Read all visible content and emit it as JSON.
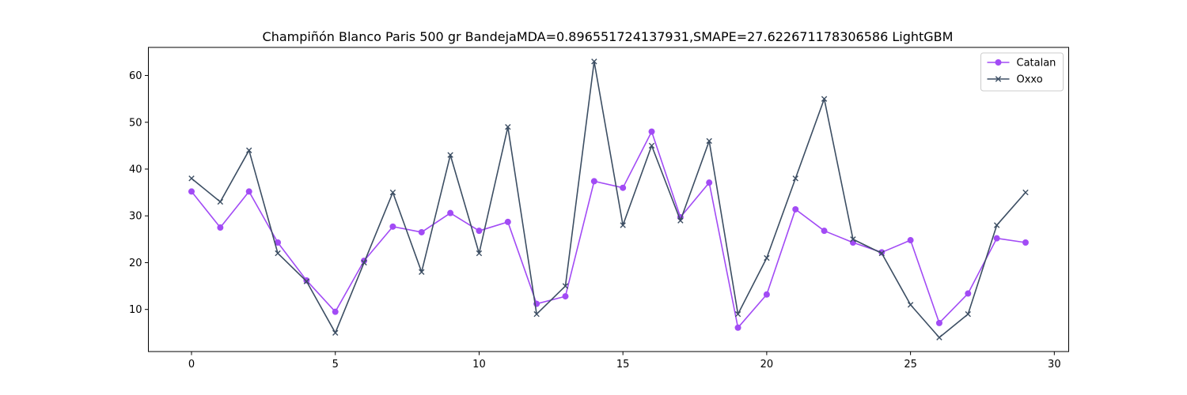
{
  "chart_data": {
    "type": "line",
    "title": "Champiñón Blanco Paris 500 gr BandejaMDA=0.896551724137931,SMAPE=27.622671178306586 LightGBM",
    "xlabel": "",
    "ylabel": "",
    "xlim": [
      -1.5,
      30.5
    ],
    "ylim": [
      1.0,
      66.0
    ],
    "xticks": [
      0,
      5,
      10,
      15,
      20,
      25,
      30
    ],
    "yticks": [
      10,
      20,
      30,
      40,
      50,
      60
    ],
    "grid": false,
    "legend_position": "top-right",
    "x": [
      0,
      1,
      2,
      3,
      4,
      5,
      6,
      7,
      8,
      9,
      10,
      11,
      12,
      13,
      14,
      15,
      16,
      17,
      18,
      19,
      20,
      21,
      22,
      23,
      24,
      25,
      26,
      27,
      28,
      29
    ],
    "series": [
      {
        "name": "Catalan",
        "color": "#a24bf5",
        "marker": "circle",
        "values": [
          35.2,
          27.5,
          35.2,
          24.3,
          16.2,
          9.5,
          20.4,
          27.7,
          26.5,
          30.6,
          26.8,
          28.7,
          11.2,
          12.8,
          37.4,
          36.0,
          48.0,
          29.7,
          37.1,
          6.1,
          13.2,
          31.4,
          26.8,
          24.3,
          22.2,
          24.8,
          7.1,
          13.4,
          25.2,
          24.3
        ]
      },
      {
        "name": "Oxxo",
        "color": "#3c4e63",
        "marker": "x",
        "values": [
          38,
          33,
          44,
          22,
          16,
          5,
          20,
          35,
          18,
          43,
          22,
          49,
          9,
          15,
          63,
          28,
          45,
          29,
          46,
          9,
          21,
          38,
          55,
          25,
          22,
          11,
          4,
          9,
          28,
          35
        ]
      }
    ]
  }
}
